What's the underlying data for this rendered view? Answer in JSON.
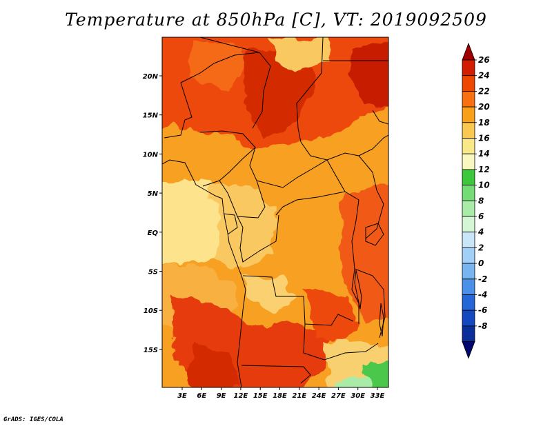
{
  "title": "Temperature at 850hPa [C], VT: 2019092509",
  "credit": "GrADS: IGES/COLA",
  "map": {
    "lat_labels": [
      "20N",
      "15N",
      "10N",
      "5N",
      "EQ",
      "5S",
      "10S",
      "15S"
    ],
    "lon_labels": [
      "3E",
      "6E",
      "9E",
      "12E",
      "15E",
      "18E",
      "21E",
      "24E",
      "27E",
      "30E",
      "33E"
    ]
  },
  "colorbar": {
    "labels": [
      "26",
      "24",
      "22",
      "20",
      "18",
      "16",
      "14",
      "12",
      "10",
      "8",
      "6",
      "4",
      "2",
      "0",
      "-2",
      "-4",
      "-6",
      "-8"
    ],
    "colors": [
      "#a00000",
      "#d21e00",
      "#ee4800",
      "#f87010",
      "#f8a018",
      "#f8c850",
      "#f8e888",
      "#f8f8c0",
      "#3cc83c",
      "#74dc74",
      "#a8eca8",
      "#d4f6d4",
      "#c8e6f8",
      "#a0d0f8",
      "#78b4f0",
      "#4890e8",
      "#2466d8",
      "#1448c0",
      "#0a2e9a",
      "#000870"
    ]
  },
  "colors": {
    "land_base": "#f7a020",
    "ocean_cool": "#fbe07c",
    "hot": "#e83a10",
    "very_hot": "#cc1f00",
    "cool_green": "#4cc84c"
  }
}
